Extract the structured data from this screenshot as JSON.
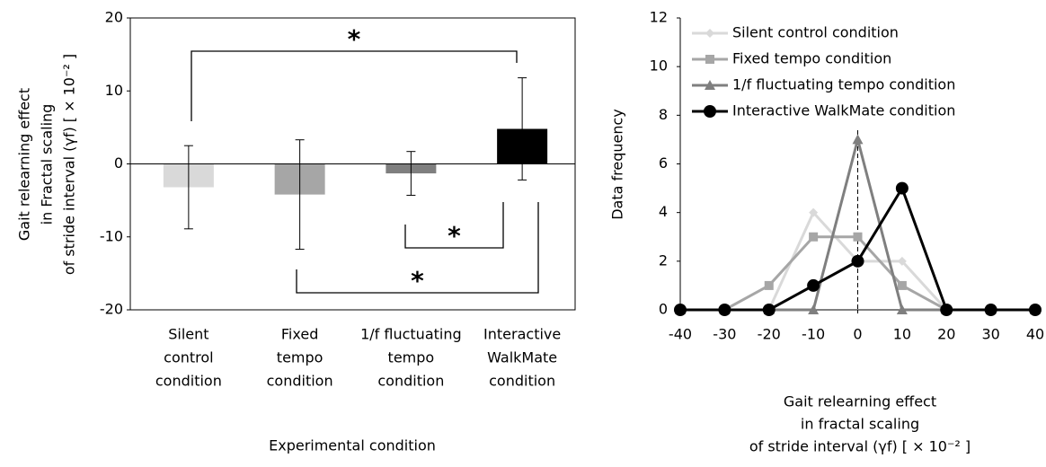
{
  "chart_data": [
    {
      "type": "bar",
      "categories": [
        [
          "Silent",
          "control",
          "condition"
        ],
        [
          "Fixed",
          "tempo",
          "condition"
        ],
        [
          "1/f fluctuating",
          "tempo",
          "condition"
        ],
        [
          "Interactive",
          "WalkMate",
          "condition"
        ]
      ],
      "values": [
        -3.2,
        -4.2,
        -1.3,
        4.8
      ],
      "errors": [
        5.7,
        7.5,
        3.0,
        7.0
      ],
      "colors": [
        "#d9d9d9",
        "#a6a6a6",
        "#7f7f7f",
        "#000000"
      ],
      "ylim": [
        -20,
        20
      ],
      "yticks": [
        -20,
        -10,
        0,
        10,
        20
      ],
      "y_label": [
        "Gait relearning effect",
        "in Fractal scaling",
        "of stride interval (γf) [ × 10⁻² ]"
      ],
      "x_label": "Experimental condition",
      "annotations": [
        "*",
        "*",
        "*"
      ]
    },
    {
      "type": "line",
      "x": [
        -40,
        -30,
        -20,
        -10,
        0,
        10,
        20,
        30,
        40
      ],
      "series": [
        {
          "name": "Silent control condition",
          "color": "#d9d9d9",
          "marker": "diamond",
          "values": [
            0,
            0,
            0,
            4,
            2,
            2,
            0,
            0,
            0
          ]
        },
        {
          "name": "Fixed tempo condition",
          "color": "#a6a6a6",
          "marker": "square",
          "values": [
            0,
            0,
            1,
            3,
            3,
            1,
            0,
            0,
            0
          ]
        },
        {
          "name": "1/f fluctuating tempo condition",
          "color": "#7f7f7f",
          "marker": "triangle",
          "values": [
            0,
            0,
            0,
            0,
            7,
            0,
            0,
            0,
            0
          ]
        },
        {
          "name": "Interactive WalkMate condition",
          "color": "#000000",
          "marker": "circle",
          "values": [
            0,
            0,
            0,
            1,
            2,
            5,
            0,
            0,
            0
          ]
        }
      ],
      "xlim": [
        -40,
        40
      ],
      "xticks": [
        -40,
        -30,
        -20,
        -10,
        0,
        10,
        20,
        30,
        40
      ],
      "ylim": [
        0,
        12
      ],
      "yticks": [
        0,
        2,
        4,
        6,
        8,
        10,
        12
      ],
      "y_label": "Data frequency",
      "x_label": [
        "Gait relearning effect",
        "in fractal scaling",
        "of stride interval (γf) [ × 10⁻² ]"
      ],
      "legend": "upper-left"
    }
  ]
}
